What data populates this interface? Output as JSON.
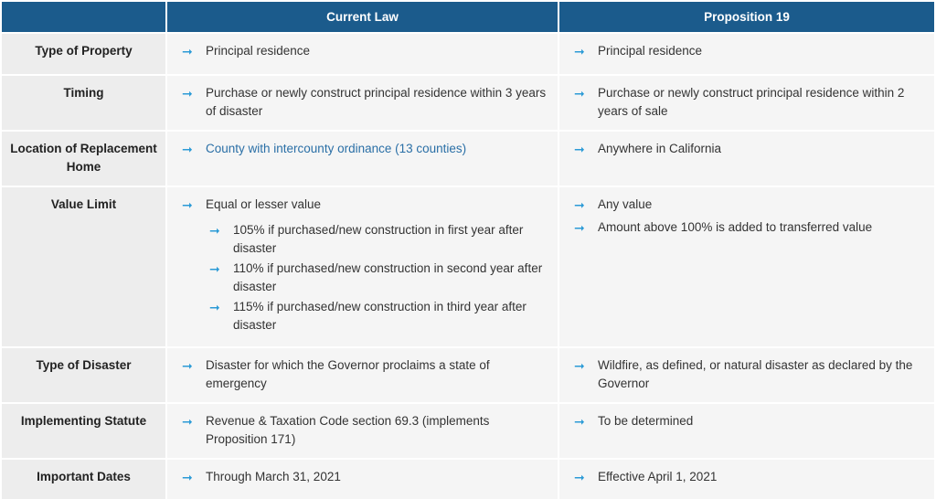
{
  "header": {
    "col1": "",
    "col2": "Current Law",
    "col3": "Proposition 19"
  },
  "rows": [
    {
      "label": "Type of Property",
      "current": [
        {
          "text": "Principal residence"
        }
      ],
      "prop19": [
        {
          "text": "Principal residence"
        }
      ]
    },
    {
      "label": "Timing",
      "current": [
        {
          "text": "Purchase or newly construct principal residence within 3 years of disaster"
        }
      ],
      "prop19": [
        {
          "text": "Purchase or newly construct principal residence within 2 years of sale"
        }
      ]
    },
    {
      "label": "Location of Replacement Home",
      "current": [
        {
          "text": "County with intercounty ordinance (13 counties)"
        }
      ],
      "prop19": [
        {
          "text": "Anywhere in California"
        }
      ]
    },
    {
      "label": "Value Limit",
      "current": [
        {
          "text": "Equal or lesser value"
        },
        {
          "text": "105% if purchased/new construction in first year after disaster"
        },
        {
          "text": "110% if purchased/new construction in second year after disaster"
        },
        {
          "text": "115% if purchased/new construction in third year after disaster"
        }
      ],
      "prop19": [
        {
          "text": "Any value"
        },
        {
          "text": "Amount above 100% is added to transferred value"
        }
      ]
    },
    {
      "label": "Type of Disaster",
      "current": [
        {
          "text": "Disaster for which the Governor proclaims a state of emergency"
        }
      ],
      "prop19": [
        {
          "text": "Wildfire, as defined, or natural disaster as declared by the Governor"
        }
      ]
    },
    {
      "label": "Implementing Statute",
      "current": [
        {
          "text": "Revenue & Taxation Code section 69.3 (implements Proposition 171)"
        }
      ],
      "prop19": [
        {
          "text": "To be determined"
        }
      ]
    },
    {
      "label": "Important Dates",
      "current": [
        {
          "text": "Through March 31, 2021"
        }
      ],
      "prop19": [
        {
          "text": "Effective April 1, 2021"
        }
      ]
    }
  ],
  "icons": {
    "bullet": "arrow-right-icon",
    "bullet_glyph": "➞"
  },
  "colors": {
    "header_bg": "#1b5b8c",
    "arrow": "#2b9ad6",
    "link": "#2a6fa6"
  }
}
